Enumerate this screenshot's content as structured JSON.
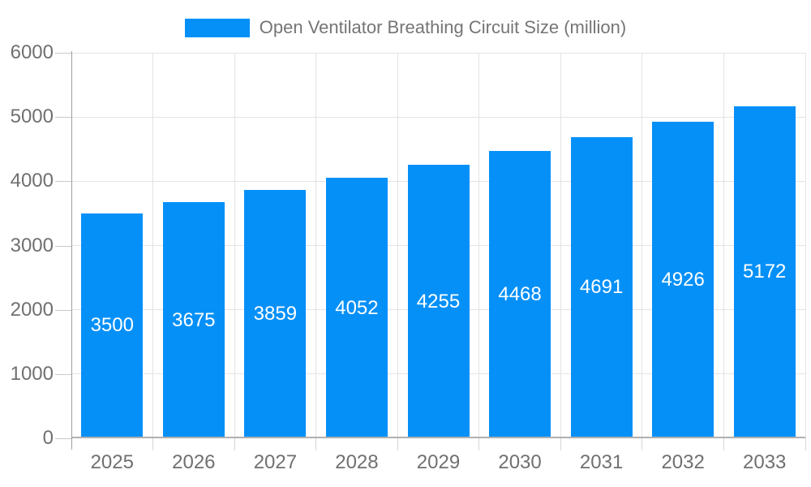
{
  "chart_data": {
    "type": "bar",
    "title": "Open Ventilator Breathing Circuit Size (million)",
    "categories": [
      "2025",
      "2026",
      "2027",
      "2028",
      "2029",
      "2030",
      "2031",
      "2032",
      "2033"
    ],
    "series": [
      {
        "name": "Open Ventilator Breathing Circuit Size (million)",
        "values": [
          3500,
          3675,
          3859,
          4052,
          4255,
          4468,
          4691,
          4926,
          5172
        ]
      }
    ],
    "xlabel": "",
    "ylabel": "",
    "ylim": [
      0,
      6000
    ],
    "y_ticks": [
      0,
      1000,
      2000,
      3000,
      4000,
      5000,
      6000
    ],
    "grid": true,
    "legend_position": "top-center",
    "value_labels": "inside-center",
    "colors": {
      "bar": "#0590f8",
      "grid": "#e4e4e4",
      "zero_line": "#b0b0b0",
      "axis_line": "#9e9e9e",
      "tick": "#c9c9c9",
      "axis_text": "#707070",
      "legend_text": "#757575",
      "value_text": "#ffffff",
      "background": "#ffffff"
    }
  }
}
